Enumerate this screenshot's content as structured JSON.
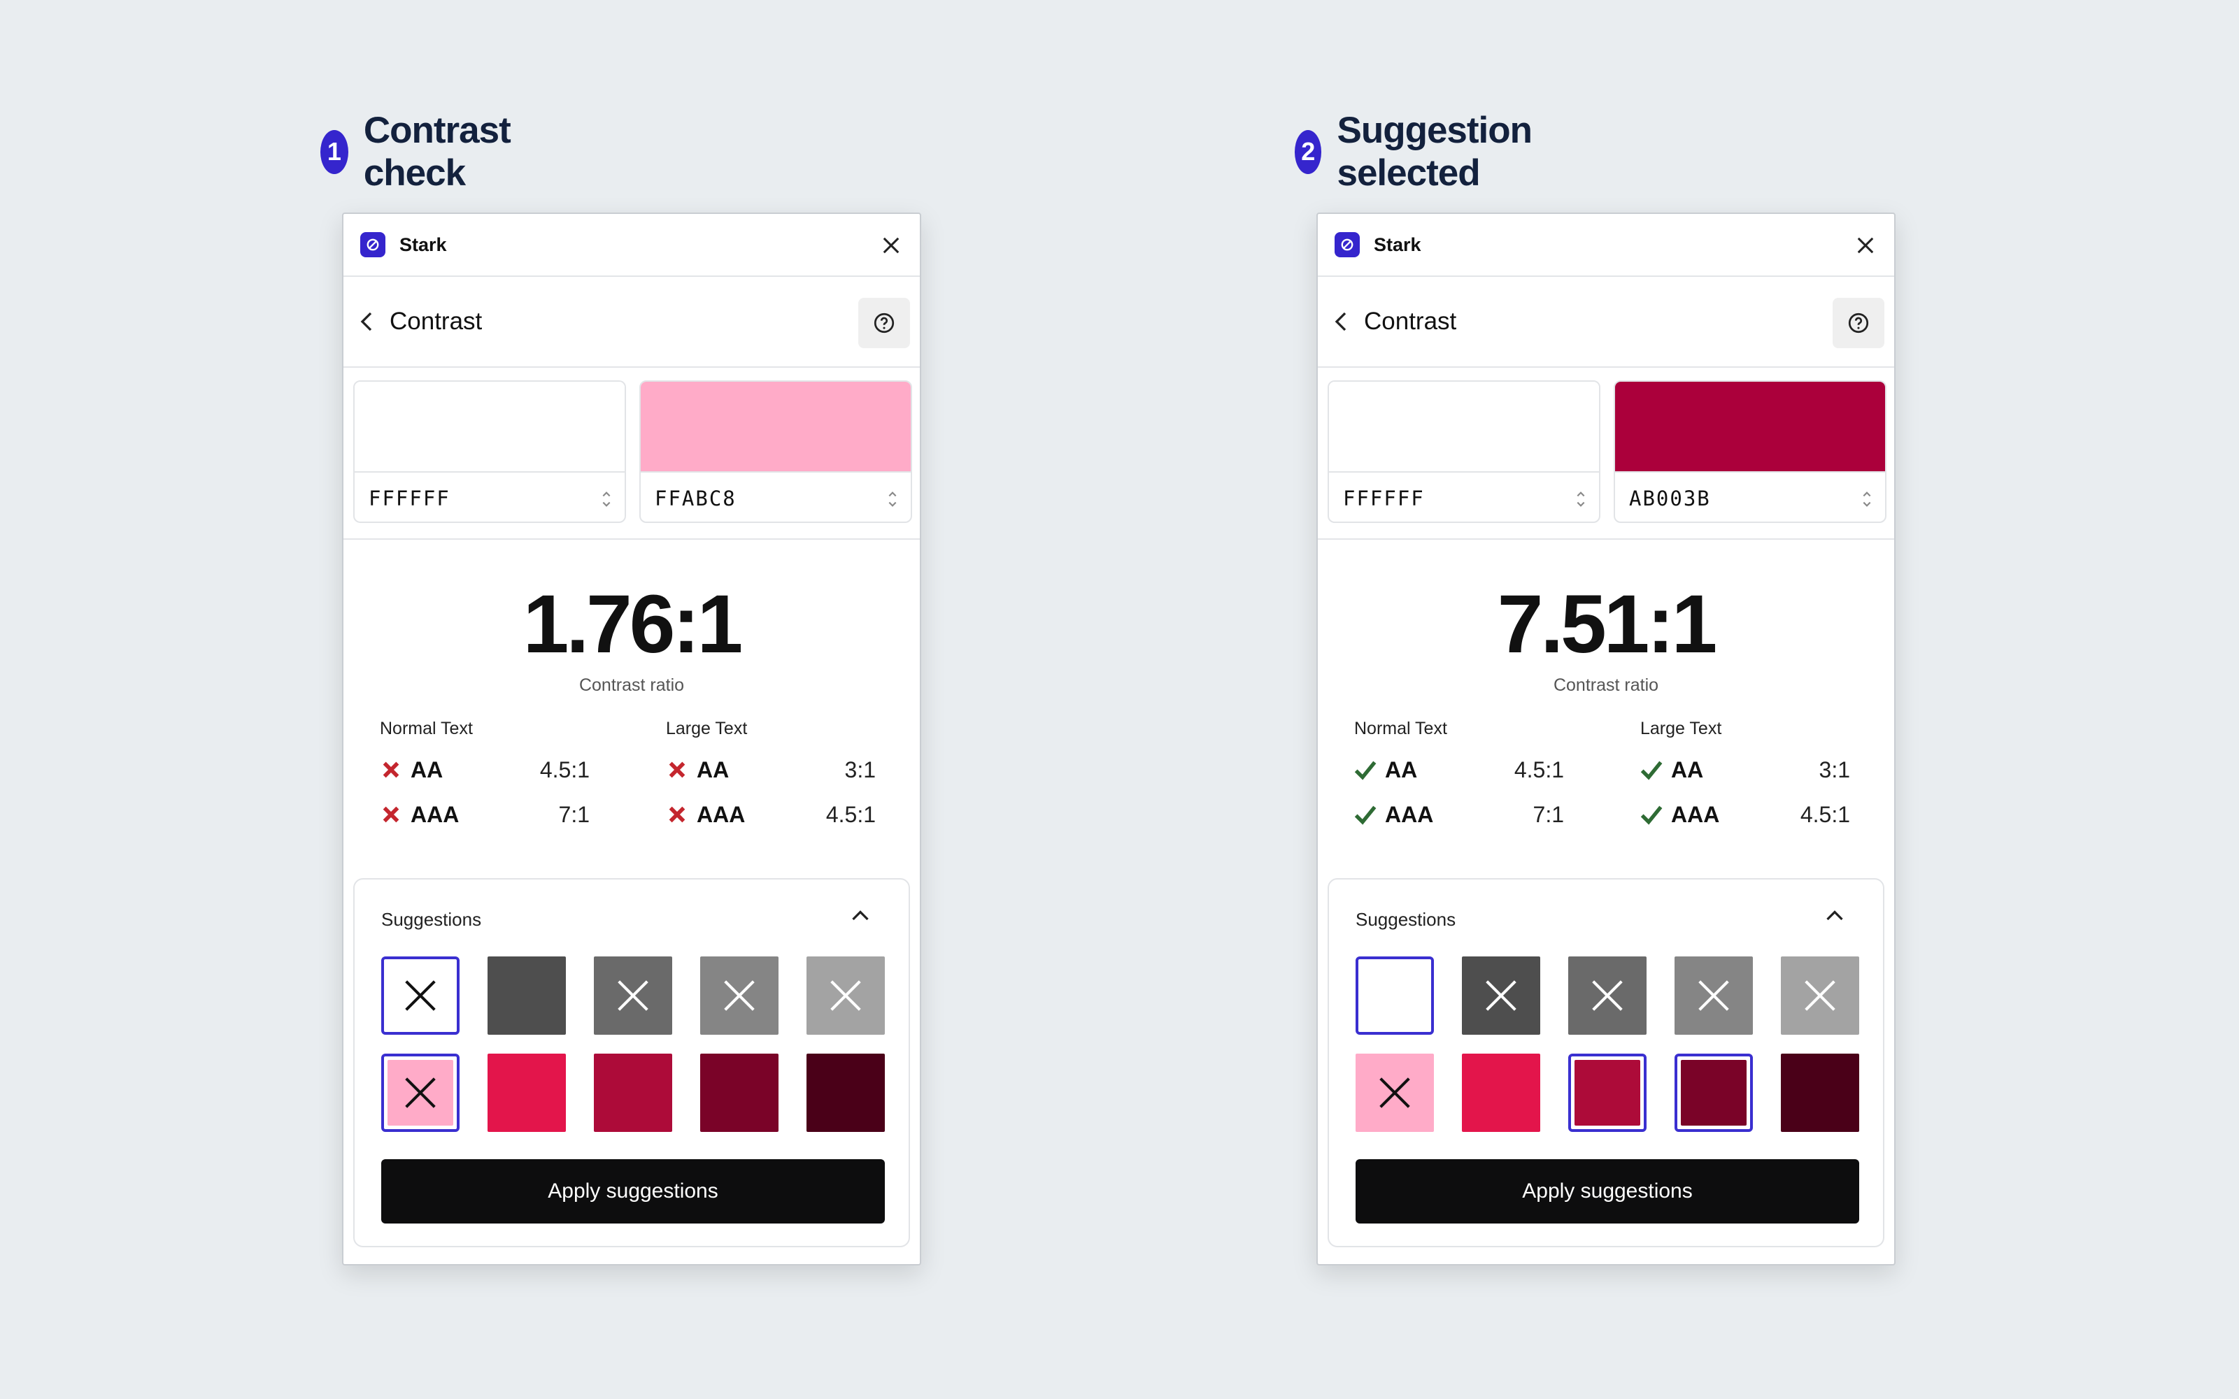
{
  "colors": {
    "accent": "#3525cd",
    "pass": "#2e6b34",
    "fail": "#c4262e",
    "cross_light": "#ffffff",
    "cross_dark": "#111111"
  },
  "panels": [
    {
      "step_number": "1",
      "step_title": "Contrast check",
      "app_name": "Stark",
      "nav_title": "Contrast",
      "foreground": {
        "hex": "FFFFFF",
        "color": "#FFFFFF"
      },
      "background": {
        "hex": "FFABC8",
        "color": "#FFABC8"
      },
      "ratio": "1.76:1",
      "ratio_label": "Contrast ratio",
      "normal_text": {
        "label": "Normal Text",
        "rows": [
          {
            "level": "AA",
            "requirement": "4.5:1",
            "pass": false
          },
          {
            "level": "AAA",
            "requirement": "7:1",
            "pass": false
          }
        ]
      },
      "large_text": {
        "label": "Large Text",
        "rows": [
          {
            "level": "AA",
            "requirement": "3:1",
            "pass": false
          },
          {
            "level": "AAA",
            "requirement": "4.5:1",
            "pass": false
          }
        ]
      },
      "suggestions_title": "Suggestions",
      "suggestion_rows": [
        [
          {
            "color": "#FFFFFF",
            "crossed": true,
            "cross": "dark",
            "selected": true
          },
          {
            "color": "#4E4E4E",
            "crossed": false,
            "cross": "light",
            "selected": false
          },
          {
            "color": "#6A6A6A",
            "crossed": true,
            "cross": "light",
            "selected": false
          },
          {
            "color": "#858585",
            "crossed": true,
            "cross": "light",
            "selected": false
          },
          {
            "color": "#A3A3A3",
            "crossed": true,
            "cross": "light",
            "selected": false
          }
        ],
        [
          {
            "color": "#FFABC8",
            "crossed": true,
            "cross": "dark",
            "selected": true
          },
          {
            "color": "#E3154B",
            "crossed": false,
            "cross": "light",
            "selected": false
          },
          {
            "color": "#AD0B39",
            "crossed": false,
            "cross": "light",
            "selected": false
          },
          {
            "color": "#7A0328",
            "crossed": false,
            "cross": "light",
            "selected": false
          },
          {
            "color": "#4A0018",
            "crossed": false,
            "cross": "light",
            "selected": false
          }
        ]
      ],
      "apply_label": "Apply suggestions"
    },
    {
      "step_number": "2",
      "step_title": "Suggestion selected",
      "app_name": "Stark",
      "nav_title": "Contrast",
      "foreground": {
        "hex": "FFFFFF",
        "color": "#FFFFFF"
      },
      "background": {
        "hex": "AB003B",
        "color": "#AB003B"
      },
      "ratio": "7.51:1",
      "ratio_label": "Contrast ratio",
      "normal_text": {
        "label": "Normal Text",
        "rows": [
          {
            "level": "AA",
            "requirement": "4.5:1",
            "pass": true
          },
          {
            "level": "AAA",
            "requirement": "7:1",
            "pass": true
          }
        ]
      },
      "large_text": {
        "label": "Large Text",
        "rows": [
          {
            "level": "AA",
            "requirement": "3:1",
            "pass": true
          },
          {
            "level": "AAA",
            "requirement": "4.5:1",
            "pass": true
          }
        ]
      },
      "suggestions_title": "Suggestions",
      "suggestion_rows": [
        [
          {
            "color": "#FFFFFF",
            "crossed": false,
            "cross": "dark",
            "selected": true
          },
          {
            "color": "#4E4E4E",
            "crossed": true,
            "cross": "light",
            "selected": false
          },
          {
            "color": "#6A6A6A",
            "crossed": true,
            "cross": "light",
            "selected": false
          },
          {
            "color": "#858585",
            "crossed": true,
            "cross": "light",
            "selected": false
          },
          {
            "color": "#A3A3A3",
            "crossed": true,
            "cross": "light",
            "selected": false
          }
        ],
        [
          {
            "color": "#FFABC8",
            "crossed": true,
            "cross": "dark",
            "selected": false
          },
          {
            "color": "#E3154B",
            "crossed": false,
            "cross": "light",
            "selected": false
          },
          {
            "color": "#AD0B39",
            "crossed": false,
            "cross": "light",
            "selected": true
          },
          {
            "color": "#7A0328",
            "crossed": false,
            "cross": "light",
            "selected": true
          },
          {
            "color": "#4A0018",
            "crossed": false,
            "cross": "light",
            "selected": false
          }
        ]
      ],
      "apply_label": "Apply suggestions"
    }
  ]
}
